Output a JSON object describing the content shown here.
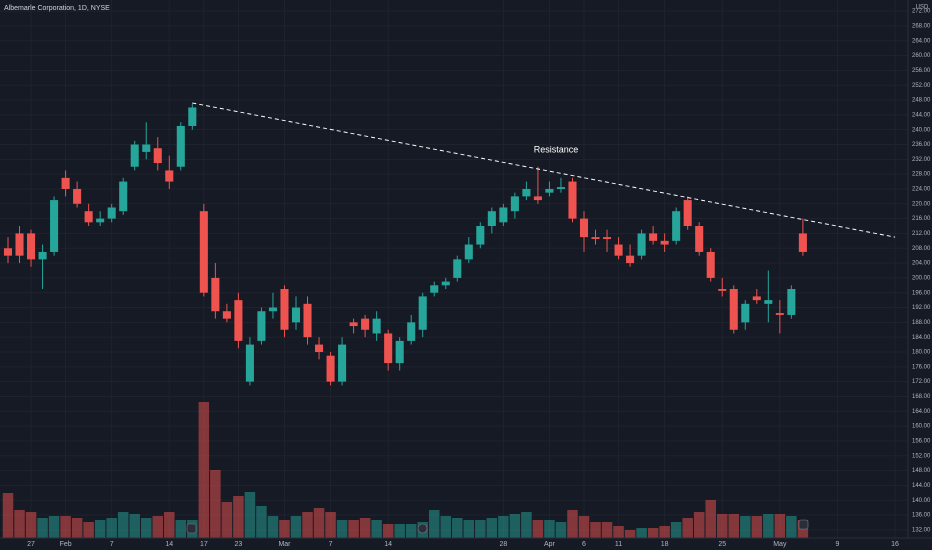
{
  "chart_data": {
    "type": "candlestick",
    "title": "Albemarle Corporation, 1D, NYSE",
    "currency": "USD",
    "categories": [
      null,
      null,
      "27",
      null,
      null,
      "Feb",
      null,
      null,
      null,
      "7",
      null,
      null,
      null,
      null,
      "14",
      null,
      null,
      "17",
      null,
      null,
      "23",
      null,
      null,
      null,
      "Mar",
      null,
      null,
      null,
      "7",
      null,
      null,
      null,
      null,
      "14",
      null,
      null,
      null,
      null,
      null,
      null,
      null,
      null,
      null,
      "28",
      null,
      null,
      null,
      "Apr",
      null,
      null,
      "6",
      null,
      null,
      "11",
      null,
      null,
      null,
      "18",
      null,
      null,
      null,
      null,
      "25",
      null,
      null,
      null,
      null,
      "May",
      null,
      null,
      null,
      null,
      "9",
      null,
      null,
      null,
      null,
      "16"
    ],
    "open": [
      208,
      212,
      212,
      205,
      207,
      227,
      224,
      218,
      215,
      216,
      218,
      230,
      234,
      235,
      229,
      230,
      241,
      218,
      200,
      191,
      194,
      172,
      183,
      191,
      197,
      188,
      193,
      182,
      179,
      172,
      188,
      189,
      185,
      185,
      177,
      183,
      186,
      196,
      198,
      200,
      205,
      209,
      214,
      215,
      218,
      222,
      222,
      223,
      224,
      226,
      216,
      211,
      211,
      209,
      206,
      206,
      212,
      210,
      210,
      221,
      214,
      207,
      197,
      197,
      188,
      195,
      193,
      190.5,
      190,
      212,
      null,
      null,
      null,
      null,
      null,
      null,
      null,
      null
    ],
    "high": [
      211,
      214,
      213,
      209,
      222,
      229,
      226,
      220,
      218,
      220,
      227,
      237,
      242,
      238,
      233,
      242,
      247,
      220,
      204,
      193,
      196,
      184,
      192,
      196,
      198,
      195,
      195,
      184,
      180,
      184,
      189,
      190,
      191,
      186,
      184,
      190,
      196,
      199,
      200,
      206,
      211,
      215,
      219,
      220,
      223,
      226,
      230,
      226,
      227,
      227,
      218,
      213,
      213,
      211,
      209,
      213,
      214,
      212,
      219,
      222,
      215,
      208,
      200,
      198,
      194,
      197,
      202,
      194,
      198,
      216,
      null,
      null,
      null,
      null,
      null,
      null,
      null,
      null
    ],
    "low": [
      204,
      204,
      203,
      197,
      206,
      222,
      219,
      214,
      214,
      215,
      217,
      229,
      232,
      229,
      224,
      229,
      240,
      195,
      189,
      188,
      181,
      171,
      182,
      189,
      184,
      186,
      182,
      178,
      171,
      171,
      185,
      184,
      183,
      175,
      175,
      182,
      184,
      195,
      197,
      199,
      204,
      208,
      212,
      214,
      216,
      221,
      220,
      222,
      223,
      215,
      207,
      209,
      207,
      205,
      203,
      205,
      209,
      207,
      209,
      213,
      206,
      199,
      195,
      185,
      186,
      193,
      188,
      185,
      189,
      206,
      null,
      null,
      null,
      null,
      null,
      null,
      null,
      null
    ],
    "close": [
      206,
      206,
      205,
      207,
      221,
      224,
      220,
      215,
      216,
      219,
      226,
      236,
      236,
      231,
      226,
      241,
      246,
      196,
      191,
      189,
      183,
      182,
      191,
      192,
      186,
      192,
      184,
      180,
      172,
      182,
      187,
      186,
      189,
      177,
      183,
      188,
      195,
      198,
      199,
      205,
      209,
      214,
      218,
      219,
      222,
      224,
      221,
      224,
      224.5,
      216,
      211,
      210.5,
      210.5,
      206,
      204,
      212,
      210,
      209,
      218,
      214,
      207,
      200,
      196.5,
      186,
      193,
      194,
      194,
      190,
      197,
      207,
      null,
      null,
      null,
      null,
      null,
      null,
      null,
      null
    ],
    "volume": [
      4.5,
      2.8,
      2.6,
      2.0,
      2.2,
      2.2,
      2.0,
      1.6,
      1.8,
      2.0,
      2.6,
      2.4,
      2.0,
      2.2,
      2.6,
      1.8,
      1.8,
      13.6,
      6.8,
      3.6,
      4.2,
      4.6,
      3.2,
      2.2,
      1.8,
      2.2,
      2.6,
      3.0,
      2.6,
      1.8,
      1.8,
      2.0,
      1.8,
      1.4,
      1.4,
      1.4,
      1.6,
      2.8,
      2.2,
      2.0,
      1.8,
      1.8,
      2.0,
      2.2,
      2.4,
      2.6,
      1.8,
      1.8,
      1.6,
      2.8,
      2.2,
      1.6,
      1.6,
      1.2,
      0.8,
      1.0,
      1.0,
      1.2,
      1.6,
      2.0,
      2.6,
      3.8,
      2.4,
      2.4,
      2.2,
      2.2,
      2.4,
      2.4,
      2.2,
      1.8,
      null,
      null,
      null,
      null,
      null,
      null,
      null,
      null
    ],
    "up_color": "#26a69a",
    "down_color": "#ef5350",
    "ylim": [
      129.8,
      275
    ],
    "yticks": [
      {
        "value": 132,
        "label": "132.00"
      },
      {
        "value": 136,
        "label": "136.00"
      },
      {
        "value": 140,
        "label": "140.00"
      },
      {
        "value": 144,
        "label": "144.00"
      },
      {
        "value": 148,
        "label": "148.00"
      },
      {
        "value": 152,
        "label": "152.00"
      },
      {
        "value": 156,
        "label": "156.00"
      },
      {
        "value": 160,
        "label": "160.00"
      },
      {
        "value": 164,
        "label": "164.00"
      },
      {
        "value": 168,
        "label": "168.00"
      },
      {
        "value": 172,
        "label": "172.00"
      },
      {
        "value": 176,
        "label": "176.00"
      },
      {
        "value": 180,
        "label": "180.00"
      },
      {
        "value": 184,
        "label": "184.00"
      },
      {
        "value": 188,
        "label": "188.00"
      },
      {
        "value": 192,
        "label": "192.00"
      },
      {
        "value": 196,
        "label": "196.00"
      },
      {
        "value": 200,
        "label": "200.00"
      },
      {
        "value": 204,
        "label": "204.00"
      },
      {
        "value": 208,
        "label": "208.00"
      },
      {
        "value": 212,
        "label": "212.00"
      },
      {
        "value": 216,
        "label": "216.00"
      },
      {
        "value": 220,
        "label": "220.00"
      },
      {
        "value": 224,
        "label": "224.00"
      },
      {
        "value": 228,
        "label": "228.00"
      },
      {
        "value": 232,
        "label": "232.00"
      },
      {
        "value": 236,
        "label": "236.00"
      },
      {
        "value": 240,
        "label": "240.00"
      },
      {
        "value": 244,
        "label": "244.00"
      },
      {
        "value": 248,
        "label": "248.00"
      },
      {
        "value": 252,
        "label": "252.00"
      },
      {
        "value": 256,
        "label": "256.00"
      },
      {
        "value": 260,
        "label": "260.00"
      },
      {
        "value": 264,
        "label": "264.00"
      },
      {
        "value": 268,
        "label": "268.00"
      },
      {
        "value": 272,
        "label": "272.00"
      }
    ],
    "grid": true,
    "annotation": {
      "text": "Resistance",
      "from": {
        "index": 16,
        "price": 247.2
      },
      "to": {
        "index": 77,
        "price": 211
      }
    }
  }
}
